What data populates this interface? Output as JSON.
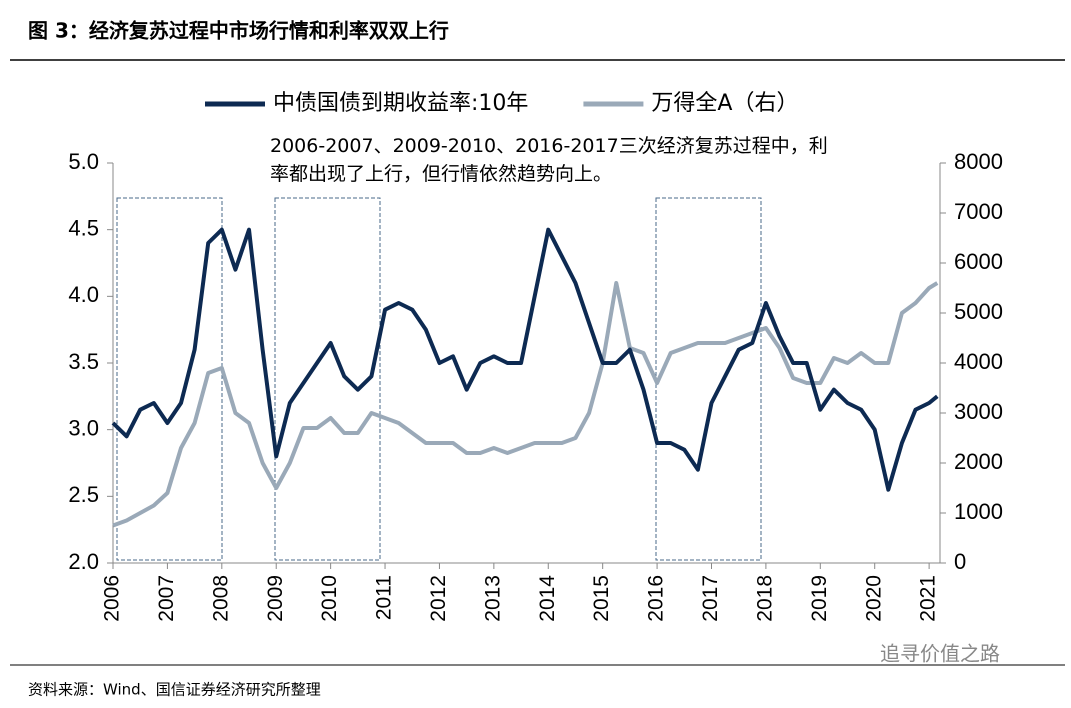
{
  "chart_data": {
    "type": "line",
    "title": "图 3：经济复苏过程中市场行情和利率双双上行",
    "annotation": "2006-2007、2009-2010、2016-2017三次经济复苏过程中，利率都出现了上行，但行情依然趋势向上。",
    "source": "资料来源：Wind、国信证券经济研究所整理",
    "watermark": "追寻价值之路",
    "x": [
      2006,
      2006.25,
      2006.5,
      2006.75,
      2007,
      2007.25,
      2007.5,
      2007.75,
      2008,
      2008.25,
      2008.5,
      2008.75,
      2009,
      2009.25,
      2009.5,
      2009.75,
      2010,
      2010.25,
      2010.5,
      2010.75,
      2011,
      2011.25,
      2011.5,
      2011.75,
      2012,
      2012.25,
      2012.5,
      2012.75,
      2013,
      2013.25,
      2013.5,
      2013.75,
      2014,
      2014.25,
      2014.5,
      2014.75,
      2015,
      2015.25,
      2015.5,
      2015.75,
      2016,
      2016.25,
      2016.5,
      2016.75,
      2017,
      2017.25,
      2017.5,
      2017.75,
      2018,
      2018.25,
      2018.5,
      2018.75,
      2019,
      2019.25,
      2019.5,
      2019.75,
      2020,
      2020.25,
      2020.5,
      2020.75,
      2021,
      2021.15
    ],
    "series": [
      {
        "name": "中债国债到期收益率:10年",
        "color": "#0d2a52",
        "values": [
          3.05,
          2.95,
          3.15,
          3.2,
          3.05,
          3.2,
          3.6,
          4.4,
          4.5,
          4.2,
          4.5,
          3.6,
          2.8,
          3.2,
          3.35,
          3.5,
          3.65,
          3.4,
          3.3,
          3.4,
          3.9,
          3.95,
          3.9,
          3.75,
          3.5,
          3.55,
          3.3,
          3.5,
          3.55,
          3.5,
          3.5,
          4.0,
          4.5,
          4.3,
          4.1,
          3.8,
          3.5,
          3.5,
          3.6,
          3.3,
          2.9,
          2.9,
          2.85,
          2.7,
          3.2,
          3.4,
          3.6,
          3.65,
          3.95,
          3.7,
          3.5,
          3.5,
          3.15,
          3.3,
          3.2,
          3.15,
          3.0,
          2.55,
          2.9,
          3.15,
          3.2,
          3.25
        ]
      },
      {
        "name": "万得全A（右）",
        "color": "#9aa9b8",
        "axis": "y2",
        "values": [
          750,
          850,
          1000,
          1150,
          1400,
          2300,
          2800,
          3800,
          3900,
          3000,
          2800,
          2000,
          1500,
          2000,
          2700,
          2700,
          2900,
          2600,
          2600,
          3000,
          2900,
          2800,
          2600,
          2400,
          2400,
          2400,
          2200,
          2200,
          2300,
          2200,
          2300,
          2400,
          2400,
          2400,
          2500,
          3000,
          4000,
          5600,
          4300,
          4200,
          3600,
          4200,
          4300,
          4400,
          4400,
          4400,
          4500,
          4600,
          4700,
          4300,
          3700,
          3600,
          3600,
          4100,
          4000,
          4200,
          4000,
          4000,
          5000,
          5200,
          5500,
          5600
        ]
      }
    ],
    "xlim": [
      2006,
      2021.2
    ],
    "xticks": [
      2006,
      2007,
      2008,
      2009,
      2010,
      2011,
      2012,
      2013,
      2014,
      2015,
      2016,
      2017,
      2018,
      2019,
      2020,
      2021
    ],
    "ylim": [
      2,
      5
    ],
    "yticks": [
      {
        "value": 2,
        "label": "2.0"
      },
      {
        "value": 2.5,
        "label": "2.5"
      },
      {
        "value": 3,
        "label": "3.0"
      },
      {
        "value": 3.5,
        "label": "3.5"
      },
      {
        "value": 4,
        "label": "4.0"
      },
      {
        "value": 4.5,
        "label": "4.5"
      },
      {
        "value": 5,
        "label": "5.0"
      }
    ],
    "y2lim": [
      0,
      8000
    ],
    "y2ticks": [
      0,
      1000,
      2000,
      3000,
      4000,
      5000,
      6000,
      7000,
      8000
    ],
    "legend": "top"
  }
}
